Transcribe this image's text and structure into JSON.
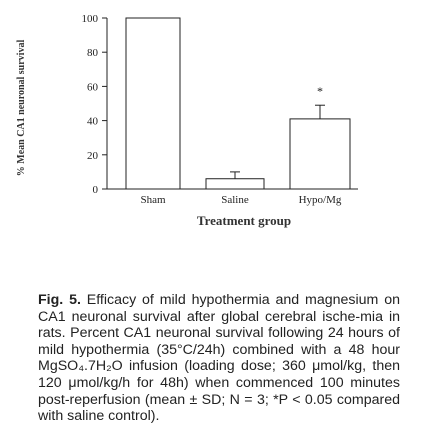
{
  "chart_data": {
    "type": "bar",
    "categories": [
      "Sham",
      "Saline",
      "Hypo/Mg"
    ],
    "values": [
      100,
      6,
      41
    ],
    "error": [
      0,
      4,
      8
    ],
    "xlabel": "Treatment group",
    "ylabel": "% Mean CA1 neuronal survival",
    "ylim": [
      0,
      100
    ],
    "yticks": [
      0,
      20,
      40,
      60,
      80,
      100
    ],
    "annotations": [
      {
        "category": "Hypo/Mg",
        "text": "*"
      }
    ],
    "grid": false
  },
  "caption": {
    "label": "Fig. 5.",
    "text": "Efficacy of mild hypothermia and magnesium on CA1 neuronal survival after global cerebral ische-mia in rats. Percent CA1 neuronal survival following 24 hours of mild hypothermia (35°C/24h) combined with a 48 hour MgSO₄.7H₂O infusion (loading dose; 360 μmol/kg, then 120 μmol/kg/h for 48h) when commenced 100 minutes post-reperfusion (mean ± SD; N = 3; *P < 0.05 compared with saline control)."
  }
}
